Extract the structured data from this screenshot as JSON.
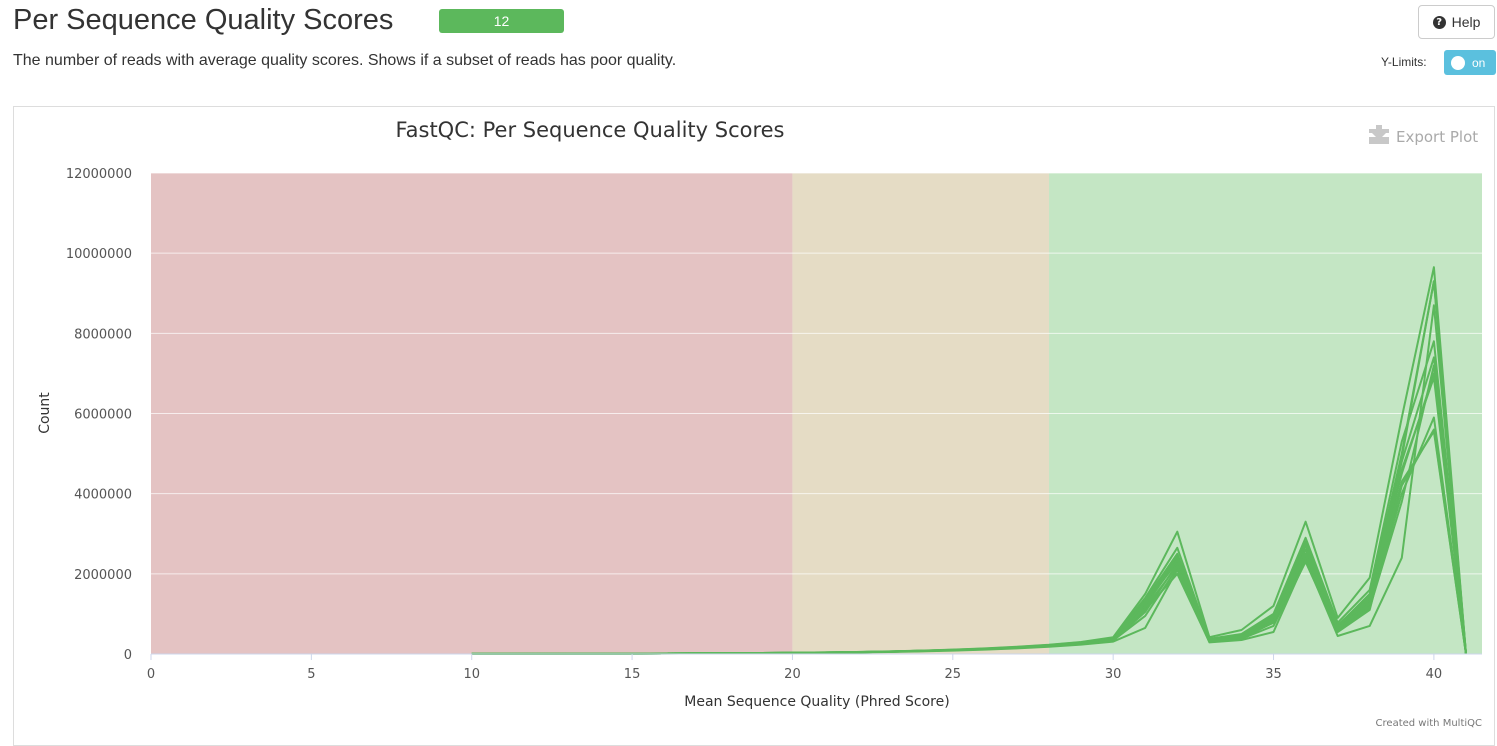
{
  "header": {
    "title": "Per Sequence Quality Scores",
    "badge": "12",
    "help_label": "Help",
    "description": "The number of reads with average quality scores. Shows if a subset of reads has poor quality.",
    "ylimits_label": "Y-Limits:",
    "ylimits_toggle": "on"
  },
  "plot": {
    "export_label": "Export Plot",
    "credit": "Created with MultiQC"
  },
  "colors": {
    "line": "#5cb85c",
    "band_fail": "#e4c3c3",
    "band_warn": "#e5dcc5",
    "band_pass": "#c4e6c4",
    "badge": "#5cb85c",
    "toggle": "#5bc0de"
  },
  "chart_data": {
    "type": "line",
    "title": "FastQC: Per Sequence Quality Scores",
    "xlabel": "Mean Sequence Quality (Phred Score)",
    "ylabel": "Count",
    "xlim": [
      0,
      41.5
    ],
    "ylim": [
      0,
      12000000
    ],
    "xticks": [
      0,
      5,
      10,
      15,
      20,
      25,
      30,
      35,
      40
    ],
    "yticks": [
      0,
      2000000,
      4000000,
      6000000,
      8000000,
      10000000,
      12000000
    ],
    "bands": [
      {
        "from": 0,
        "to": 20,
        "status": "fail"
      },
      {
        "from": 20,
        "to": 28,
        "status": "warn"
      },
      {
        "from": 28,
        "to": 41.5,
        "status": "pass"
      }
    ],
    "x": [
      10,
      11,
      12,
      13,
      14,
      15,
      16,
      17,
      18,
      19,
      20,
      21,
      22,
      23,
      24,
      25,
      26,
      27,
      28,
      29,
      30,
      31,
      32,
      33,
      34,
      35,
      36,
      37,
      38,
      39,
      40,
      41
    ],
    "series": [
      {
        "values": [
          2000,
          3000,
          4000,
          6000,
          8000,
          10000,
          13000,
          16000,
          20000,
          24000,
          30000,
          38000,
          48000,
          62000,
          80000,
          100000,
          130000,
          170000,
          220000,
          290000,
          380000,
          1300000,
          2400000,
          350000,
          450000,
          900000,
          2700000,
          700000,
          1500000,
          5000000,
          9300000,
          0
        ]
      },
      {
        "values": [
          2000,
          3000,
          4000,
          6000,
          8000,
          11000,
          14000,
          17000,
          21000,
          26000,
          32000,
          40000,
          50000,
          65000,
          85000,
          110000,
          140000,
          180000,
          230000,
          300000,
          420000,
          1500000,
          3050000,
          420000,
          600000,
          1200000,
          3300000,
          900000,
          1900000,
          5900000,
          9650000,
          0
        ]
      },
      {
        "values": [
          1500,
          2500,
          3500,
          5000,
          7000,
          9000,
          12000,
          15000,
          18000,
          22000,
          27000,
          34000,
          43000,
          55000,
          72000,
          92000,
          118000,
          150000,
          190000,
          250000,
          330000,
          1100000,
          2000000,
          300000,
          380000,
          700000,
          2300000,
          550000,
          1100000,
          4200000,
          5600000,
          0
        ]
      },
      {
        "values": [
          1800,
          2800,
          3800,
          5500,
          7500,
          9500,
          12500,
          15500,
          19000,
          23000,
          29000,
          36000,
          46000,
          60000,
          78000,
          98000,
          125000,
          160000,
          205000,
          270000,
          360000,
          1250000,
          2300000,
          330000,
          420000,
          850000,
          2500000,
          650000,
          1300000,
          4500000,
          7000000,
          0
        ]
      },
      {
        "values": [
          1900,
          2900,
          3900,
          5800,
          7800,
          9800,
          12800,
          15800,
          19500,
          24000,
          30000,
          37000,
          47000,
          61000,
          79000,
          99000,
          128000,
          165000,
          210000,
          280000,
          370000,
          1350000,
          2500000,
          360000,
          460000,
          950000,
          2800000,
          720000,
          1450000,
          4800000,
          7400000,
          0
        ]
      },
      {
        "values": [
          1700,
          2700,
          3700,
          5300,
          7300,
          9300,
          12300,
          15300,
          18500,
          22500,
          28000,
          35000,
          45000,
          58000,
          75000,
          95000,
          122000,
          155000,
          200000,
          260000,
          340000,
          950000,
          2150000,
          320000,
          400000,
          780000,
          2400000,
          600000,
          1200000,
          4000000,
          5900000,
          0
        ]
      },
      {
        "values": [
          1200,
          2200,
          3200,
          4500,
          6500,
          8500,
          11000,
          14000,
          17000,
          20000,
          25000,
          31000,
          40000,
          50000,
          65000,
          85000,
          110000,
          140000,
          180000,
          235000,
          310000,
          650000,
          2100000,
          290000,
          350000,
          550000,
          2350000,
          450000,
          700000,
          2400000,
          8700000,
          0
        ]
      },
      {
        "values": [
          2100,
          3100,
          4100,
          6100,
          8100,
          10100,
          13100,
          16100,
          20100,
          24500,
          31000,
          39000,
          49000,
          63000,
          82000,
          104000,
          135000,
          175000,
          225000,
          295000,
          400000,
          1400000,
          2650000,
          380000,
          500000,
          1000000,
          2900000,
          780000,
          1600000,
          5300000,
          7800000,
          0
        ]
      },
      {
        "values": [
          1600,
          2600,
          3600,
          5100,
          7100,
          9100,
          12100,
          15100,
          18200,
          22200,
          27500,
          34500,
          44000,
          57000,
          74000,
          94000,
          120000,
          152000,
          195000,
          255000,
          335000,
          1050000,
          2250000,
          310000,
          390000,
          800000,
          2450000,
          580000,
          1150000,
          3800000,
          7200000,
          0
        ]
      },
      {
        "values": [
          2000,
          3000,
          4000,
          6000,
          8000,
          10000,
          13000,
          16000,
          20000,
          24000,
          30000,
          38000,
          48000,
          62000,
          80000,
          100000,
          130000,
          170000,
          220000,
          285000,
          375000,
          1200000,
          2350000,
          340000,
          440000,
          880000,
          2600000,
          680000,
          1350000,
          4600000,
          6900000,
          0
        ]
      },
      {
        "values": [
          1800,
          2800,
          3800,
          5600,
          7600,
          9600,
          12600,
          15600,
          19200,
          23400,
          29200,
          36500,
          46500,
          60500,
          78500,
          98500,
          126000,
          162000,
          207000,
          272000,
          362000,
          1280000,
          2450000,
          345000,
          430000,
          920000,
          2750000,
          700000,
          1400000,
          4900000,
          9300000,
          0
        ]
      },
      {
        "values": [
          1500,
          2500,
          3500,
          5200,
          7200,
          9200,
          12200,
          15200,
          18300,
          22300,
          27800,
          34800,
          44500,
          57500,
          74500,
          94500,
          121000,
          153000,
          198000,
          258000,
          338000,
          1150000,
          2200000,
          315000,
          395000,
          820000,
          2480000,
          620000,
          1250000,
          4300000,
          5550000,
          0
        ]
      }
    ]
  }
}
